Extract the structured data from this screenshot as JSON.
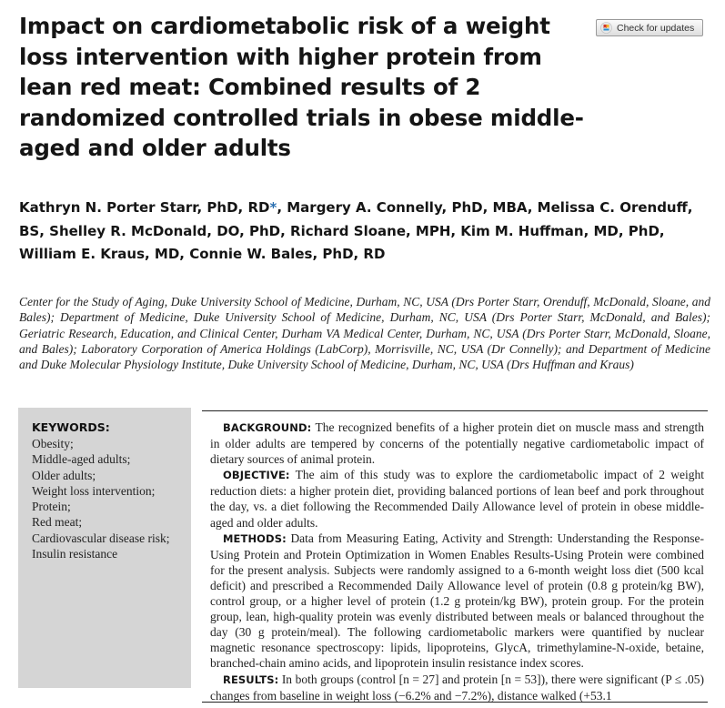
{
  "article": {
    "title": "Impact on cardiometabolic risk of a weight loss intervention with higher protein from lean red meat: Combined results of 2 randomized controlled trials in obese middle-aged and older adults",
    "check_updates_label": "Check for updates",
    "authors": "Kathryn N. Porter Starr, PhD, RD",
    "author_mark": "*",
    "authors_rest": ", Margery A. Connelly, PhD, MBA, Melissa C. Orenduff, BS, Shelley R. McDonald, DO, PhD, Richard Sloane, MPH, Kim M. Huffman, MD, PhD, William E. Kraus, MD, Connie W. Bales, PhD, RD",
    "affiliations": "Center for the Study of Aging, Duke University School of Medicine, Durham, NC, USA (Drs Porter Starr, Orenduff, McDonald, Sloane, and Bales); Department of Medicine, Duke University School of Medicine, Durham, NC, USA (Drs Porter Starr, McDonald, and Bales); Geriatric Research, Education, and Clinical Center, Durham VA Medical Center, Durham, NC, USA (Drs Porter Starr, McDonald, Sloane, and Bales); Laboratory Corporation of America Holdings (LabCorp), Morrisville, NC, USA (Dr Connelly); and Department of Medicine and Duke Molecular Physiology Institute, Duke University School of Medicine, Durham, NC, USA (Drs Huffman and Kraus)"
  },
  "keywords": {
    "heading": "KEYWORDS:",
    "items": [
      "Obesity;",
      "Middle-aged adults;",
      "Older adults;",
      "Weight loss intervention;",
      "Protein;",
      "Red meat;",
      "Cardiovascular disease risk;",
      "Insulin resistance"
    ]
  },
  "abstract": {
    "background_label": "BACKGROUND:",
    "background": "The recognized benefits of a higher protein diet on muscle mass and strength in older adults are tempered by concerns of the potentially negative cardiometabolic impact of dietary sources of animal protein.",
    "objective_label": "OBJECTIVE:",
    "objective": "The aim of this study was to explore the cardiometabolic impact of 2 weight reduction diets: a higher protein diet, providing balanced portions of lean beef and pork throughout the day, vs. a diet following the Recommended Daily Allowance level of protein in obese middle-aged and older adults.",
    "methods_label": "METHODS:",
    "methods": "Data from Measuring Eating, Activity and Strength: Understanding the Response-Using Protein and Protein Optimization in Women Enables Results-Using Protein were combined for the present analysis. Subjects were randomly assigned to a 6-month weight loss diet (500 kcal deficit) and prescribed a Recommended Daily Allowance level of protein (0.8 g protein/kg BW), control group, or a higher level of protein (1.2 g protein/kg BW), protein group. For the protein group, lean, high-quality protein was evenly distributed between meals or balanced throughout the day (30 g protein/meal). The following cardiometabolic markers were quantified by nuclear magnetic resonance spectroscopy: lipids, lipoproteins, GlycA, trimethylamine-N-oxide, betaine, branched-chain amino acids, and lipoprotein insulin resistance index scores.",
    "results_label": "RESULTS:",
    "results": "In both groups (control [n = 27] and protein [n = 53]), there were significant (P ≤ .05) changes from baseline in weight loss (−6.2% and −7.2%), distance walked (+53.1"
  }
}
